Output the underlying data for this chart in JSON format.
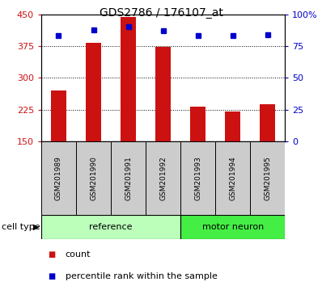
{
  "title": "GDS2786 / 176107_at",
  "samples": [
    "GSM201989",
    "GSM201990",
    "GSM201991",
    "GSM201992",
    "GSM201993",
    "GSM201994",
    "GSM201995"
  ],
  "counts": [
    270,
    383,
    443,
    373,
    233,
    220,
    238
  ],
  "percentiles": [
    83,
    88,
    90,
    87,
    83,
    83,
    84
  ],
  "ylim_left": [
    150,
    450
  ],
  "ylim_right": [
    0,
    100
  ],
  "yticks_left": [
    150,
    225,
    300,
    375,
    450
  ],
  "yticks_right": [
    0,
    25,
    50,
    75,
    100
  ],
  "bar_color": "#cc1111",
  "dot_color": "#0000cc",
  "n_reference": 4,
  "n_motor_neuron": 3,
  "ref_label": "reference",
  "mn_label": "motor neuron",
  "ref_color": "#bbffbb",
  "mn_color": "#44ee44",
  "cell_type_label": "cell type",
  "legend_count_label": "count",
  "legend_pct_label": "percentile rank within the sample",
  "background_color": "#ffffff",
  "tick_area_color": "#cccccc",
  "left_yaxis_color": "#cc1111",
  "right_yaxis_color": "#0000cc",
  "bar_width": 0.45,
  "title_fontsize": 10,
  "tick_fontsize": 8,
  "label_fontsize": 8,
  "sample_fontsize": 6.5
}
